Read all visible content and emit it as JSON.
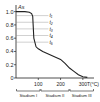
{
  "chart_data": {
    "type": "line",
    "y_label": "As",
    "x_label": "T(°C)",
    "x": [
      0,
      40,
      60,
      70,
      75,
      80,
      90,
      100,
      120,
      140,
      160,
      180,
      200,
      220,
      240,
      260,
      280,
      300,
      320
    ],
    "values": [
      1.0,
      1.0,
      0.99,
      0.97,
      0.93,
      0.6,
      0.47,
      0.44,
      0.4,
      0.37,
      0.34,
      0.31,
      0.28,
      0.22,
      0.15,
      0.1,
      0.05,
      0.02,
      0.01
    ],
    "color": "#222222",
    "xlim": [
      0,
      350
    ],
    "ylim": [
      0,
      1.1
    ],
    "xticks": [
      100,
      200,
      300
    ],
    "yticks": [
      0,
      {
        "value": 0.2,
        "label": "0.2"
      },
      {
        "value": 0.4,
        "label": "0.4"
      },
      {
        "value": 0.6,
        "label": "0.6"
      },
      {
        "value": 0.8,
        "label": "0.8"
      },
      {
        "value": 1.0,
        "label": "1.0"
      }
    ],
    "annotations": [
      {
        "text": "t₁",
        "x": 150,
        "y": 0.94
      },
      {
        "text": "t₂",
        "x": 150,
        "y": 0.84
      },
      {
        "text": "t₃",
        "x": 150,
        "y": 0.74
      },
      {
        "text": "t₄",
        "x": 150,
        "y": 0.64
      },
      {
        "text": "t₅",
        "x": 150,
        "y": 0.54
      }
    ],
    "regions": [
      {
        "label": "Stadium I",
        "x0": 0,
        "x1": 110
      },
      {
        "label": "Stadium II",
        "x0": 110,
        "x1": 240
      },
      {
        "label": "Stadium III",
        "x0": 240,
        "x1": 350
      }
    ],
    "grid": false
  }
}
